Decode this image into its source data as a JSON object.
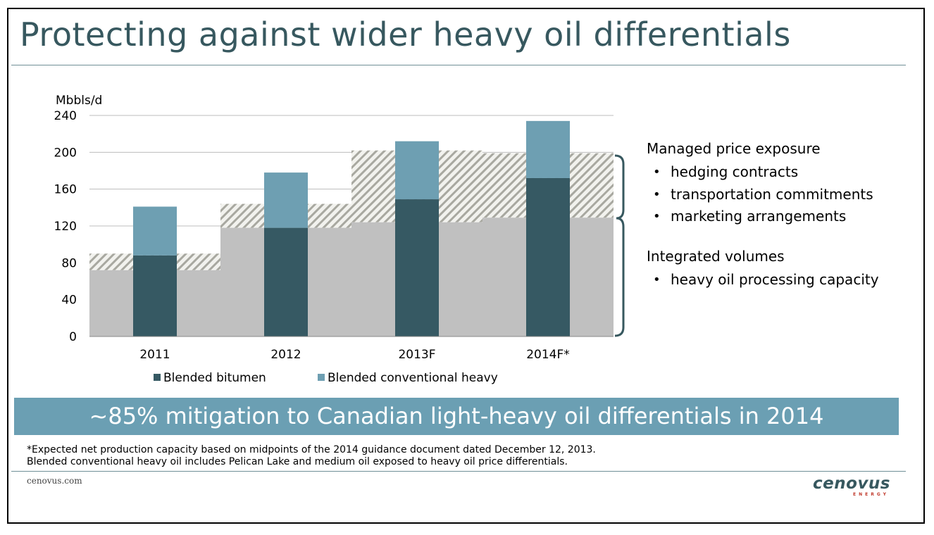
{
  "slide": {
    "title": "Protecting against wider heavy oil differentials",
    "banner": "~85% mitigation to Canadian light-heavy oil differentials in 2014",
    "footnote_line1": "*Expected net production capacity based on midpoints of the 2014 guidance document dated December 12, 2013.",
    "footnote_line2": "Blended conventional heavy oil includes Pelican Lake and medium oil exposed to heavy oil price differentials.",
    "website": "cenovus.com",
    "logo_text": "cenovus",
    "logo_subtext": "ENERGY"
  },
  "side_panel": {
    "group1_heading": "Managed price exposure",
    "group1_items": [
      "hedging contracts",
      "transportation commitments",
      "marketing arrangements"
    ],
    "group2_heading": "Integrated volumes",
    "group2_items": [
      "heavy oil processing capacity"
    ]
  },
  "chart_data": {
    "type": "bar",
    "stacked": true,
    "ylabel": "Mbbls/d",
    "ylim": [
      0,
      240
    ],
    "yticks": [
      0,
      40,
      80,
      120,
      160,
      200,
      240
    ],
    "grid": true,
    "legend_position": "bottom",
    "categories": [
      "2011",
      "2012",
      "2013F",
      "2014F*"
    ],
    "series": [
      {
        "name": "Blended bitumen",
        "color": "#365963",
        "values": [
          88,
          118,
          149,
          172
        ]
      },
      {
        "name": "Blended conventional heavy",
        "color": "#6e9fb2",
        "values": [
          53,
          60,
          63,
          62
        ]
      }
    ],
    "background_bands": {
      "integrated_volumes_top": [
        72,
        118,
        124,
        129
      ],
      "managed_exposure_top": [
        90,
        144,
        202,
        199
      ],
      "integrated_color": "#c0c0c0",
      "hatch_color": "#a8a8a0"
    }
  }
}
